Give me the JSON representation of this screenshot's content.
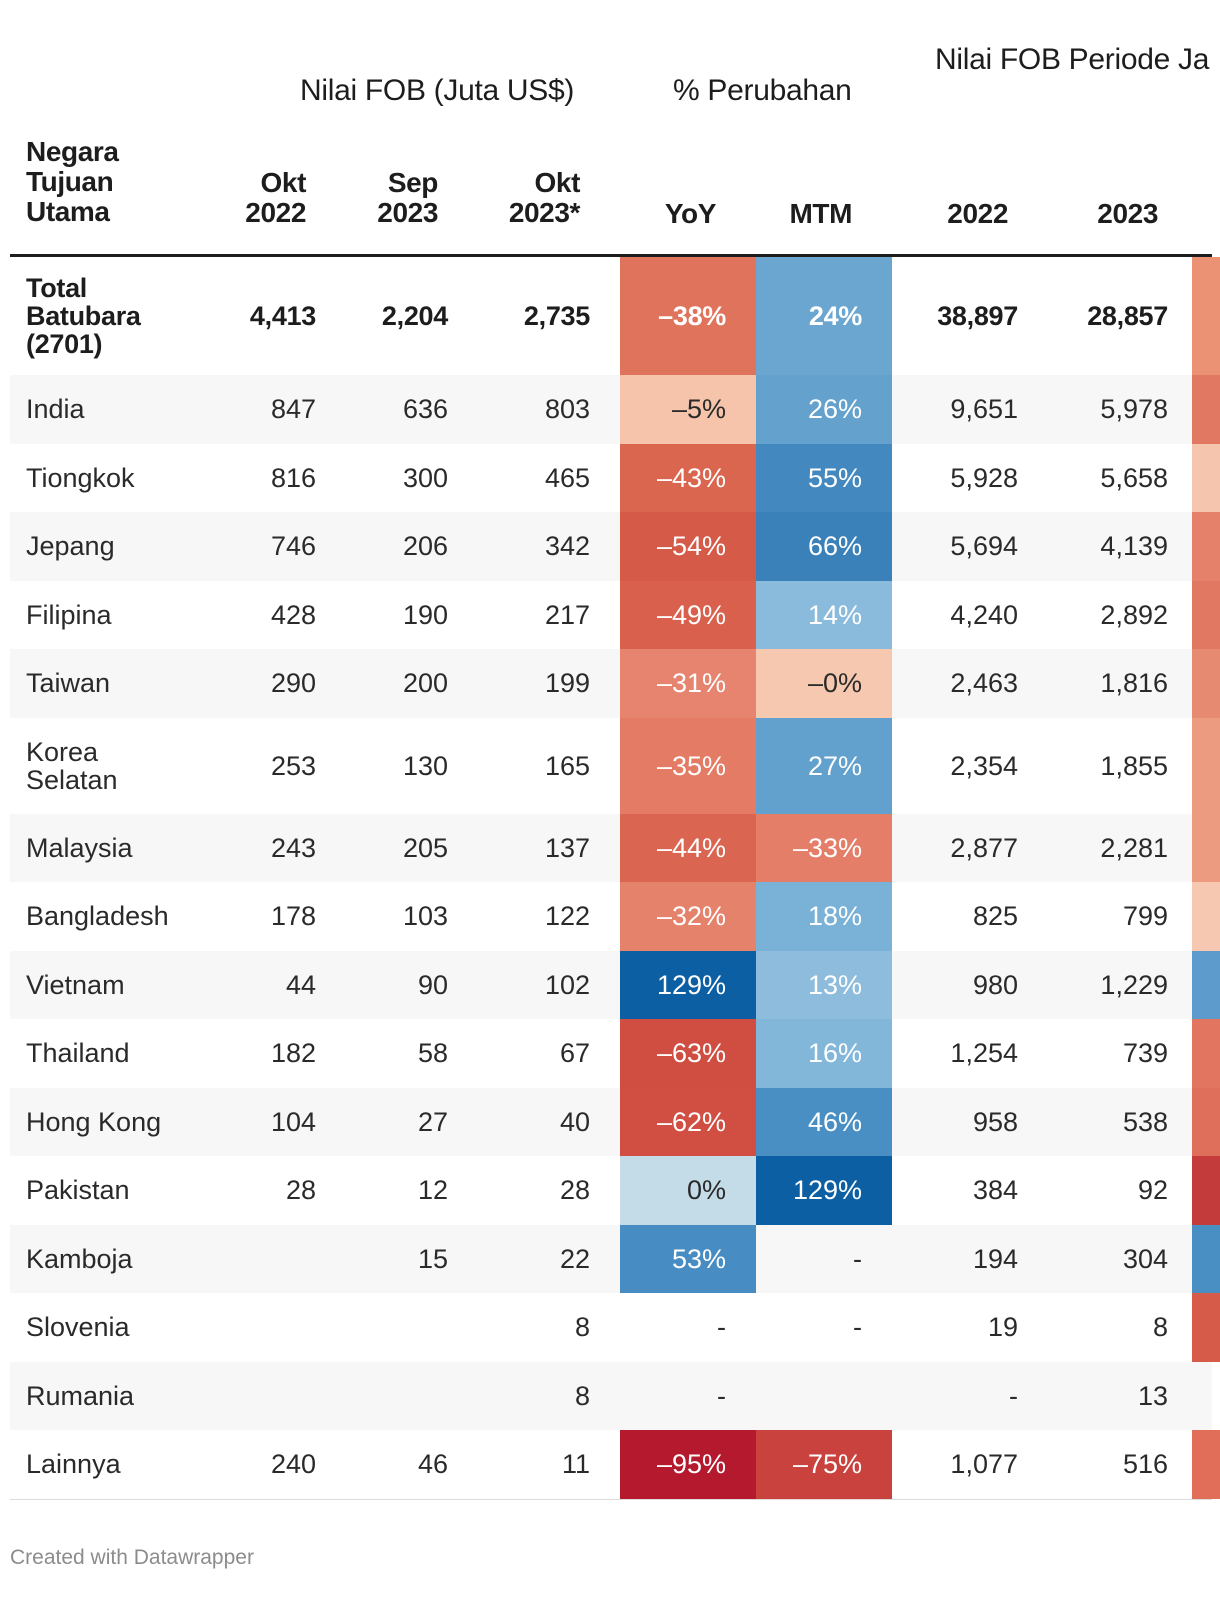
{
  "chart_data": {
    "type": "table",
    "group_headers": {
      "fob": "Nilai FOB (Juta US$)",
      "pct": "% Perubahan",
      "period": "Nilai FOB Periode Ja"
    },
    "columns": [
      "Negara\nTujuan\nUtama",
      "Okt\n2022",
      "Sep\n2023",
      "Okt\n2023*",
      "YoY",
      "MTM",
      "2022",
      "2023"
    ],
    "rows": [
      {
        "name": "Total\nBatubara\n(2701)",
        "okt2022": "4,413",
        "sep2023": "2,204",
        "okt2023": "2,735",
        "yoy": "–38%",
        "mtm": "24%",
        "p2022": "38,897",
        "p2023": "28,857",
        "yoy_color": "#e0735b",
        "mtm_color": "#6aa6cf",
        "pchg_color": "#eb9275",
        "total": true
      },
      {
        "name": "India",
        "okt2022": "847",
        "sep2023": "636",
        "okt2023": "803",
        "yoy": "–5%",
        "mtm": "26%",
        "p2022": "9,651",
        "p2023": "5,978",
        "yoy_color": "#f5c4ab",
        "mtm_color": "#64a2cd",
        "pchg_color": "#e17861"
      },
      {
        "name": "Tiongkok",
        "okt2022": "816",
        "sep2023": "300",
        "okt2023": "465",
        "yoy": "–43%",
        "mtm": "55%",
        "p2022": "5,928",
        "p2023": "5,658",
        "yoy_color": "#db6650",
        "mtm_color": "#4388bf",
        "pchg_color": "#f6c5ad"
      },
      {
        "name": "Jepang",
        "okt2022": "746",
        "sep2023": "206",
        "okt2023": "342",
        "yoy": "–54%",
        "mtm": "66%",
        "p2022": "5,694",
        "p2023": "4,139",
        "yoy_color": "#d55a48",
        "mtm_color": "#3a80b9",
        "pchg_color": "#e5816a"
      },
      {
        "name": "Filipina",
        "okt2022": "428",
        "sep2023": "190",
        "okt2023": "217",
        "yoy": "–49%",
        "mtm": "14%",
        "p2022": "4,240",
        "p2023": "2,892",
        "yoy_color": "#d8604c",
        "mtm_color": "#8bbbdc",
        "pchg_color": "#e17861"
      },
      {
        "name": "Taiwan",
        "okt2022": "290",
        "sep2023": "200",
        "okt2023": "199",
        "yoy": "–31%",
        "mtm": "–0%",
        "p2022": "2,463",
        "p2023": "1,816",
        "yoy_color": "#e68470",
        "mtm_color": "#f7c8b0",
        "pchg_color": "#e78a72"
      },
      {
        "name": "Korea\nSelatan",
        "okt2022": "253",
        "sep2023": "130",
        "okt2023": "165",
        "yoy": "–35%",
        "mtm": "27%",
        "p2022": "2,354",
        "p2023": "1,855",
        "yoy_color": "#e37b65",
        "mtm_color": "#62a0cd",
        "pchg_color": "#ec9b80"
      },
      {
        "name": "Malaysia",
        "okt2022": "243",
        "sep2023": "205",
        "okt2023": "137",
        "yoy": "–44%",
        "mtm": "–33%",
        "p2022": "2,877",
        "p2023": "2,281",
        "yoy_color": "#da6550",
        "mtm_color": "#e57e68",
        "pchg_color": "#ec9a80"
      },
      {
        "name": "Bangladesh",
        "okt2022": "178",
        "sep2023": "103",
        "okt2023": "122",
        "yoy": "–32%",
        "mtm": "18%",
        "p2022": "825",
        "p2023": "799",
        "yoy_color": "#e5826c",
        "mtm_color": "#7ab1d7",
        "pchg_color": "#f6c8b1"
      },
      {
        "name": "Vietnam",
        "okt2022": "44",
        "sep2023": "90",
        "okt2023": "102",
        "yoy": "129%",
        "mtm": "13%",
        "p2022": "980",
        "p2023": "1,229",
        "yoy_color": "#0d5fa4",
        "mtm_color": "#8dbcdc",
        "pchg_color": "#5c9bcb"
      },
      {
        "name": "Thailand",
        "okt2022": "182",
        "sep2023": "58",
        "okt2023": "67",
        "yoy": "–63%",
        "mtm": "16%",
        "p2022": "1,254",
        "p2023": "739",
        "yoy_color": "#cf4e41",
        "mtm_color": "#82b7da",
        "pchg_color": "#e27560"
      },
      {
        "name": "Hong Kong",
        "okt2022": "104",
        "sep2023": "27",
        "okt2023": "40",
        "yoy": "–62%",
        "mtm": "46%",
        "p2022": "958",
        "p2023": "538",
        "yoy_color": "#d04f42",
        "mtm_color": "#4a8fc3",
        "pchg_color": "#df6f5a"
      },
      {
        "name": "Pakistan",
        "okt2022": "28",
        "sep2023": "12",
        "okt2023": "28",
        "yoy": "0%",
        "mtm": "129%",
        "p2022": "384",
        "p2023": "92",
        "yoy_color": "#c4dbe8",
        "mtm_color": "#0d5fa4",
        "pchg_color": "#c33b3b"
      },
      {
        "name": "Kamboja",
        "okt2022": "",
        "sep2023": "15",
        "okt2023": "22",
        "yoy": "53%",
        "mtm": "-",
        "p2022": "194",
        "p2023": "304",
        "yoy_color": "#478cc2",
        "mtm_color": "",
        "pchg_color": "#4a8fc3"
      },
      {
        "name": "Slovenia",
        "okt2022": "",
        "sep2023": "",
        "okt2023": "8",
        "yoy": "-",
        "mtm": "-",
        "p2022": "19",
        "p2023": "8",
        "yoy_color": "",
        "mtm_color": "",
        "pchg_color": "#d65b49"
      },
      {
        "name": "Rumania",
        "okt2022": "",
        "sep2023": "",
        "okt2023": "8",
        "yoy": "-",
        "mtm": "",
        "p2022": "-",
        "p2023": "13",
        "yoy_color": "",
        "mtm_color": "",
        "pchg_color": ""
      },
      {
        "name": "Lainnya",
        "okt2022": "240",
        "sep2023": "46",
        "okt2023": "11",
        "yoy": "–95%",
        "mtm": "–75%",
        "p2022": "1,077",
        "p2023": "516",
        "yoy_color": "#b5192e",
        "mtm_color": "#c9423d",
        "pchg_color": "#e06e59"
      }
    ]
  },
  "footer": {
    "credit": "Created with Datawrapper"
  }
}
